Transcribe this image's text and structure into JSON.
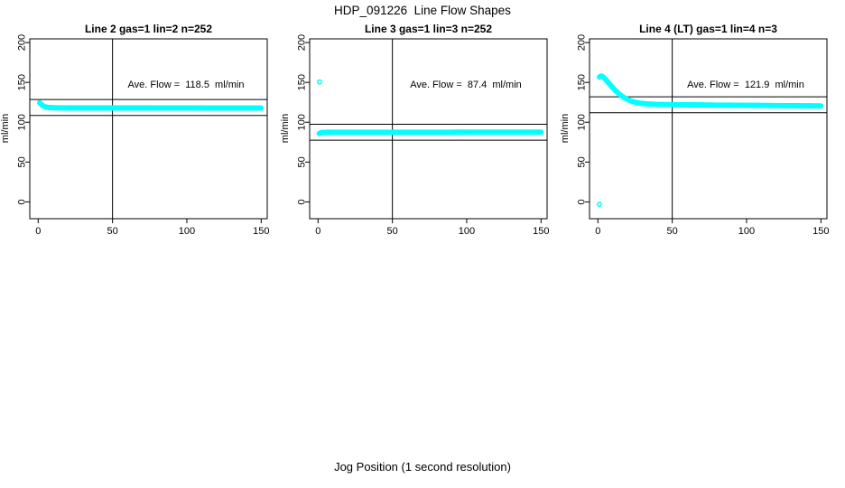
{
  "page": {
    "title": "HDP_091226  Line Flow Shapes",
    "outer_xlabel": "Jog Position (1 second resolution)",
    "background_color": "#ffffff",
    "point_color": "#00ffff",
    "line_color": "#000000"
  },
  "chart_data": [
    {
      "type": "scatter",
      "title": "Line 2 gas=1 lin=2 n=252",
      "ylabel": "ml/min",
      "annotation": "Ave. Flow =  118.5  ml/min",
      "ave_flow_ml_min": 118.5,
      "n_points": 252,
      "xticks": [
        0,
        50,
        100,
        150
      ],
      "yticks": [
        0,
        50,
        100,
        150,
        200
      ],
      "xlim": [
        0,
        150
      ],
      "ylim": [
        0,
        200
      ],
      "grid": false,
      "vline_x": 50,
      "hlines": [
        128.5,
        108.5
      ],
      "marker": "open-circle",
      "series": [
        {
          "name": "flow",
          "points": [
            [
              1,
              124.5
            ],
            [
              1.6,
              123.5
            ],
            [
              2.2,
              122.3
            ],
            [
              3,
              121.0
            ],
            [
              4,
              119.9
            ],
            [
              5,
              119.2
            ],
            [
              6,
              118.8
            ],
            [
              8,
              118.4
            ],
            [
              10,
              118.2
            ],
            [
              14,
              118.1
            ],
            [
              20,
              118.0
            ],
            [
              30,
              118.0
            ],
            [
              45,
              118.0
            ],
            [
              60,
              118.0
            ],
            [
              75,
              118.0
            ],
            [
              90,
              117.9
            ],
            [
              105,
              117.9
            ],
            [
              120,
              117.8
            ],
            [
              135,
              117.8
            ],
            [
              150,
              117.8
            ]
          ]
        }
      ],
      "outliers": []
    },
    {
      "type": "scatter",
      "title": "Line 3 gas=1 lin=3 n=252",
      "ylabel": "ml/min",
      "annotation": "Ave. Flow =  87.4  ml/min",
      "ave_flow_ml_min": 87.4,
      "n_points": 252,
      "xticks": [
        0,
        50,
        100,
        150
      ],
      "yticks": [
        0,
        50,
        100,
        150,
        200
      ],
      "xlim": [
        0,
        150
      ],
      "ylim": [
        0,
        200
      ],
      "grid": false,
      "vline_x": 50,
      "hlines": [
        97.4,
        77.4
      ],
      "marker": "open-circle",
      "series": [
        {
          "name": "flow",
          "points": [
            [
              0.8,
              85.8
            ],
            [
              1.5,
              86.6
            ],
            [
              2.5,
              87.1
            ],
            [
              4,
              87.3
            ],
            [
              6,
              87.4
            ],
            [
              10,
              87.4
            ],
            [
              20,
              87.5
            ],
            [
              35,
              87.5
            ],
            [
              50,
              87.5
            ],
            [
              70,
              87.5
            ],
            [
              90,
              87.5
            ],
            [
              110,
              87.6
            ],
            [
              130,
              87.6
            ],
            [
              150,
              87.6
            ]
          ]
        }
      ],
      "outliers": [
        [
          1,
          150.5
        ]
      ]
    },
    {
      "type": "scatter",
      "title": "Line 4 (LT) gas=1 lin=4 n=3",
      "ylabel": "ml/min",
      "annotation": "Ave. Flow =  121.9  ml/min",
      "ave_flow_ml_min": 121.9,
      "n_points": 3,
      "xticks": [
        0,
        50,
        100,
        150
      ],
      "yticks": [
        0,
        50,
        100,
        150,
        200
      ],
      "xlim": [
        0,
        150
      ],
      "ylim": [
        0,
        200
      ],
      "grid": false,
      "vline_x": 50,
      "hlines": [
        131.9,
        111.9
      ],
      "marker": "open-circle",
      "series": [
        {
          "name": "flow",
          "points": [
            [
              1,
              156.5
            ],
            [
              1.7,
              157.8
            ],
            [
              2.5,
              158.0
            ],
            [
              3.2,
              157.2
            ],
            [
              4,
              156.0
            ],
            [
              5,
              154.2
            ],
            [
              6,
              152.0
            ],
            [
              7,
              149.8
            ],
            [
              8,
              147.6
            ],
            [
              9,
              145.4
            ],
            [
              10,
              143.3
            ],
            [
              11,
              141.3
            ],
            [
              12,
              139.4
            ],
            [
              13,
              137.7
            ],
            [
              14,
              136.0
            ],
            [
              15,
              134.5
            ],
            [
              16,
              133.1
            ],
            [
              17,
              131.8
            ],
            [
              18,
              130.6
            ],
            [
              19,
              129.5
            ],
            [
              20,
              128.5
            ],
            [
              21,
              127.7
            ],
            [
              22,
              126.9
            ],
            [
              23,
              126.3
            ],
            [
              24,
              125.7
            ],
            [
              25,
              125.2
            ],
            [
              26,
              124.8
            ],
            [
              27,
              124.4
            ],
            [
              28,
              124.1
            ],
            [
              29,
              123.8
            ],
            [
              30,
              123.6
            ],
            [
              32,
              123.2
            ],
            [
              34,
              122.9
            ],
            [
              36,
              122.7
            ],
            [
              38,
              122.5
            ],
            [
              40,
              122.4
            ],
            [
              45,
              122.2
            ],
            [
              50,
              122.1
            ],
            [
              55,
              122.0
            ],
            [
              60,
              121.9
            ],
            [
              70,
              121.7
            ],
            [
              80,
              121.5
            ],
            [
              90,
              121.4
            ],
            [
              100,
              121.2
            ],
            [
              110,
              121.1
            ],
            [
              120,
              120.9
            ],
            [
              130,
              120.8
            ],
            [
              140,
              120.6
            ],
            [
              150,
              120.5
            ]
          ]
        }
      ],
      "outliers": [
        [
          1,
          -3
        ]
      ]
    }
  ]
}
